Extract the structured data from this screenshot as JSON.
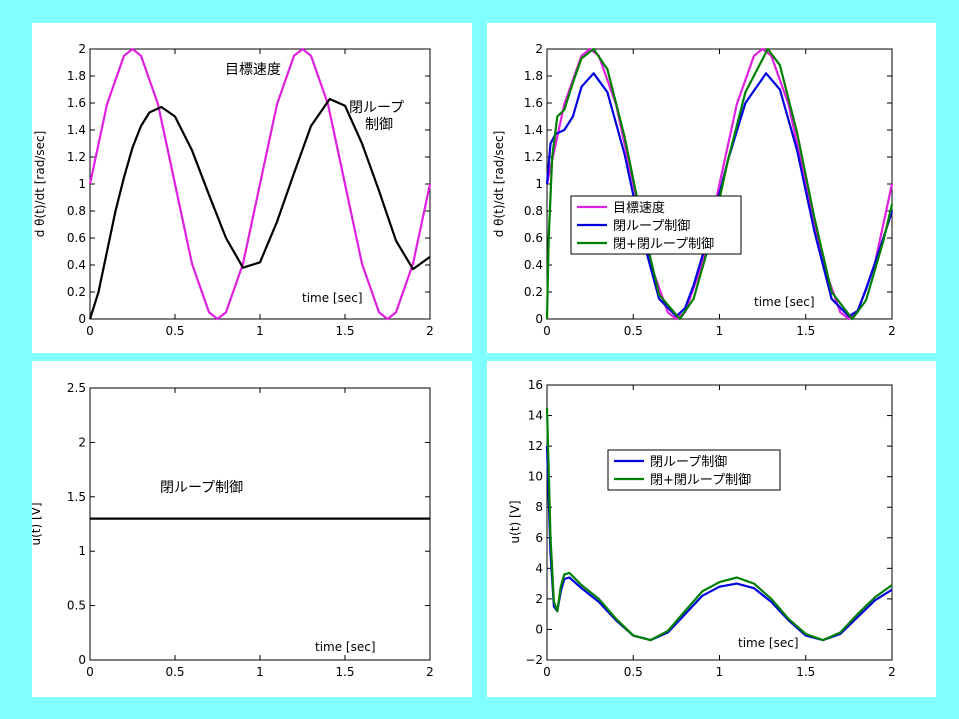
{
  "chart_data": [
    {
      "type": "line",
      "panel": "top-left",
      "xlabel": "time [sec]",
      "ylabel": "d θ(t)/dt [rad/sec]",
      "xlim": [
        0,
        2
      ],
      "ylim": [
        0,
        2
      ],
      "xticks": [
        "0",
        "0.5",
        "1",
        "1.5",
        "2"
      ],
      "yticks": [
        "0",
        "0.2",
        "0.4",
        "0.6",
        "0.8",
        "1",
        "1.2",
        "1.4",
        "1.6",
        "1.8",
        "2"
      ],
      "grid": false,
      "annotations": [
        "目標速度",
        "閉ループ",
        "制御"
      ],
      "series": [
        {
          "color": "#e020e0",
          "x": [
            0,
            0.1,
            0.2,
            0.25,
            0.3,
            0.4,
            0.5,
            0.6,
            0.7,
            0.75,
            0.8,
            0.9,
            1.0,
            1.1,
            1.2,
            1.25,
            1.3,
            1.4,
            1.5,
            1.6,
            1.7,
            1.75,
            1.8,
            1.9,
            2.0
          ],
          "values": [
            1.0,
            1.59,
            1.95,
            2.0,
            1.95,
            1.59,
            1.0,
            0.41,
            0.05,
            0.0,
            0.05,
            0.41,
            1.0,
            1.59,
            1.95,
            2.0,
            1.95,
            1.59,
            1.0,
            0.41,
            0.05,
            0.0,
            0.05,
            0.41,
            1.0
          ]
        },
        {
          "color": "#000000",
          "x": [
            0,
            0.05,
            0.1,
            0.15,
            0.2,
            0.25,
            0.3,
            0.35,
            0.42,
            0.5,
            0.6,
            0.7,
            0.8,
            0.9,
            1.0,
            1.1,
            1.2,
            1.3,
            1.41,
            1.5,
            1.6,
            1.7,
            1.8,
            1.9,
            2.0
          ],
          "values": [
            0.0,
            0.2,
            0.5,
            0.8,
            1.05,
            1.27,
            1.43,
            1.53,
            1.57,
            1.5,
            1.25,
            0.92,
            0.6,
            0.38,
            0.42,
            0.72,
            1.08,
            1.43,
            1.63,
            1.58,
            1.3,
            0.95,
            0.58,
            0.37,
            0.46
          ]
        }
      ]
    },
    {
      "type": "line",
      "panel": "top-right",
      "xlabel": "time [sec]",
      "ylabel": "d θ(t)/dt [rad/sec]",
      "xlim": [
        0,
        2
      ],
      "ylim": [
        0,
        2
      ],
      "xticks": [
        "0",
        "0.5",
        "1",
        "1.5",
        "2"
      ],
      "yticks": [
        "0",
        "0.2",
        "0.4",
        "0.6",
        "0.8",
        "1",
        "1.2",
        "1.4",
        "1.6",
        "1.8",
        "2"
      ],
      "grid": false,
      "legend": "center-left",
      "series": [
        {
          "name": "目標速度",
          "color": "#e020e0",
          "x": [
            0,
            0.1,
            0.2,
            0.25,
            0.3,
            0.4,
            0.5,
            0.6,
            0.7,
            0.75,
            0.8,
            0.9,
            1.0,
            1.1,
            1.2,
            1.25,
            1.3,
            1.4,
            1.5,
            1.6,
            1.7,
            1.75,
            1.8,
            1.9,
            2.0
          ],
          "values": [
            1.0,
            1.59,
            1.95,
            2.0,
            1.95,
            1.59,
            1.0,
            0.41,
            0.05,
            0.0,
            0.05,
            0.41,
            1.0,
            1.59,
            1.95,
            2.0,
            1.95,
            1.59,
            1.0,
            0.41,
            0.05,
            0.0,
            0.05,
            0.41,
            1.0
          ]
        },
        {
          "name": "閉ループ制御",
          "color": "#0000e0",
          "x": [
            0,
            0.02,
            0.05,
            0.1,
            0.15,
            0.2,
            0.27,
            0.35,
            0.45,
            0.55,
            0.65,
            0.75,
            0.8,
            0.85,
            0.95,
            1.05,
            1.15,
            1.27,
            1.35,
            1.45,
            1.55,
            1.65,
            1.75,
            1.8,
            1.85,
            1.95,
            2.0
          ],
          "values": [
            1.0,
            1.3,
            1.37,
            1.4,
            1.5,
            1.72,
            1.82,
            1.68,
            1.22,
            0.62,
            0.15,
            0.02,
            0.08,
            0.25,
            0.68,
            1.18,
            1.6,
            1.82,
            1.7,
            1.25,
            0.65,
            0.15,
            0.02,
            0.06,
            0.22,
            0.6,
            0.8
          ]
        },
        {
          "name": "閉+閉ループ制御",
          "color": "#008000",
          "x": [
            0,
            0.01,
            0.03,
            0.06,
            0.1,
            0.15,
            0.2,
            0.27,
            0.35,
            0.45,
            0.55,
            0.65,
            0.77,
            0.85,
            0.95,
            1.05,
            1.15,
            1.28,
            1.35,
            1.45,
            1.55,
            1.65,
            1.77,
            1.85,
            1.95,
            2.0
          ],
          "values": [
            0.0,
            0.6,
            1.2,
            1.5,
            1.55,
            1.75,
            1.93,
            2.0,
            1.85,
            1.35,
            0.72,
            0.18,
            0.0,
            0.15,
            0.6,
            1.18,
            1.68,
            2.0,
            1.88,
            1.38,
            0.75,
            0.2,
            0.0,
            0.14,
            0.58,
            0.85
          ]
        }
      ]
    },
    {
      "type": "line",
      "panel": "bottom-left",
      "xlabel": "time [sec]",
      "ylabel": "u(t) [V]",
      "xlim": [
        0,
        2
      ],
      "ylim": [
        0,
        2.5
      ],
      "xticks": [
        "0",
        "0.5",
        "1",
        "1.5",
        "2"
      ],
      "yticks": [
        "0",
        "0.5",
        "1",
        "1.5",
        "2",
        "2.5"
      ],
      "grid": false,
      "annotations": [
        "閉ループ制御"
      ],
      "series": [
        {
          "color": "#000000",
          "x": [
            0,
            2
          ],
          "values": [
            1.3,
            1.3
          ]
        }
      ]
    },
    {
      "type": "line",
      "panel": "bottom-right",
      "xlabel": "time [sec]",
      "ylabel": "u(t) [V]",
      "xlim": [
        0,
        2
      ],
      "ylim": [
        -2,
        16
      ],
      "xticks": [
        "0",
        "0.5",
        "1",
        "1.5",
        "2"
      ],
      "yticks": [
        "−2",
        "0",
        "2",
        "4",
        "6",
        "8",
        "10",
        "12",
        "14",
        "16"
      ],
      "grid": false,
      "legend": "upper-center",
      "series": [
        {
          "name": "閉ループ制御",
          "color": "#0000e0",
          "x": [
            0,
            0.02,
            0.04,
            0.06,
            0.08,
            0.1,
            0.13,
            0.2,
            0.3,
            0.4,
            0.5,
            0.6,
            0.7,
            0.8,
            0.9,
            1.0,
            1.1,
            1.2,
            1.3,
            1.4,
            1.5,
            1.6,
            1.7,
            1.8,
            1.9,
            2.0
          ],
          "values": [
            12.0,
            5.0,
            1.5,
            1.2,
            2.5,
            3.3,
            3.4,
            2.7,
            1.8,
            0.6,
            -0.4,
            -0.7,
            -0.2,
            1.0,
            2.2,
            2.8,
            3.0,
            2.7,
            1.8,
            0.6,
            -0.4,
            -0.7,
            -0.3,
            0.8,
            1.9,
            2.6
          ]
        },
        {
          "name": "閉+閉ループ制御",
          "color": "#008000",
          "x": [
            0,
            0.02,
            0.04,
            0.06,
            0.08,
            0.1,
            0.13,
            0.2,
            0.3,
            0.4,
            0.5,
            0.6,
            0.7,
            0.8,
            0.9,
            1.0,
            1.1,
            1.2,
            1.3,
            1.4,
            1.5,
            1.6,
            1.7,
            1.8,
            1.9,
            2.0
          ],
          "values": [
            14.5,
            6.0,
            1.8,
            1.2,
            2.8,
            3.6,
            3.7,
            2.9,
            2.0,
            0.7,
            -0.4,
            -0.7,
            -0.1,
            1.2,
            2.5,
            3.1,
            3.4,
            3.0,
            2.0,
            0.7,
            -0.3,
            -0.7,
            -0.2,
            1.0,
            2.1,
            2.9
          ]
        }
      ]
    }
  ]
}
